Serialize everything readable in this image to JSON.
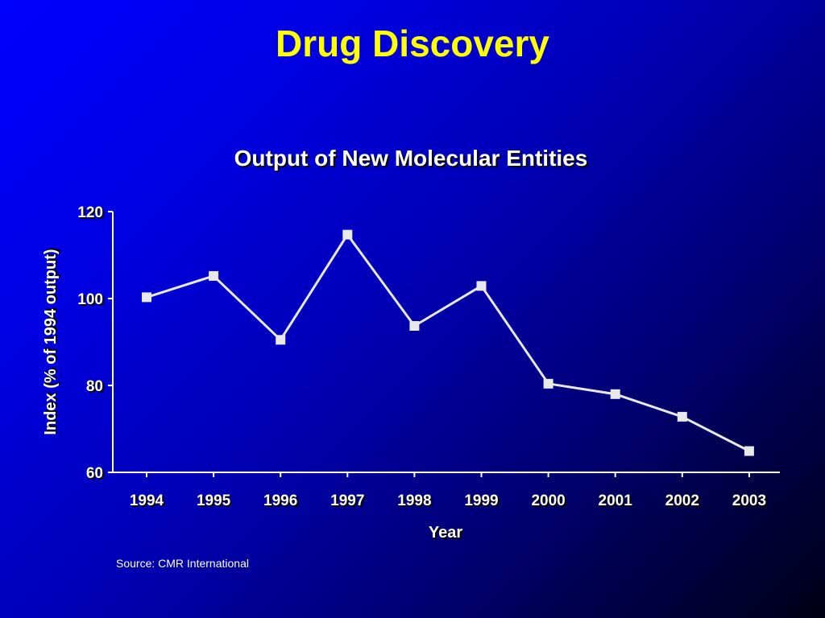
{
  "slide": {
    "title": "Drug Discovery",
    "source": "Source: CMR International"
  },
  "colors": {
    "title": "#ffff00",
    "text": "#ffffff",
    "line": "#e8e8e8",
    "background_start": "#0000ff",
    "background_end": "#000014"
  },
  "chart_data": {
    "type": "line",
    "title": "Output of New Molecular Entities",
    "xlabel": "Year",
    "ylabel": "Index (% of 1994 output)",
    "categories": [
      "1994",
      "1995",
      "1996",
      "1997",
      "1998",
      "1999",
      "2000",
      "2001",
      "2002",
      "2003"
    ],
    "series": [
      {
        "values": [
          100.3,
          105.2,
          90.5,
          114.7,
          93.7,
          102.9,
          80.4,
          78,
          72.8,
          64.9
        ],
        "marker": "square"
      }
    ],
    "ylim": [
      60,
      120
    ],
    "yticks": [
      60,
      80,
      100,
      120
    ],
    "grid": false,
    "legend": "none"
  }
}
